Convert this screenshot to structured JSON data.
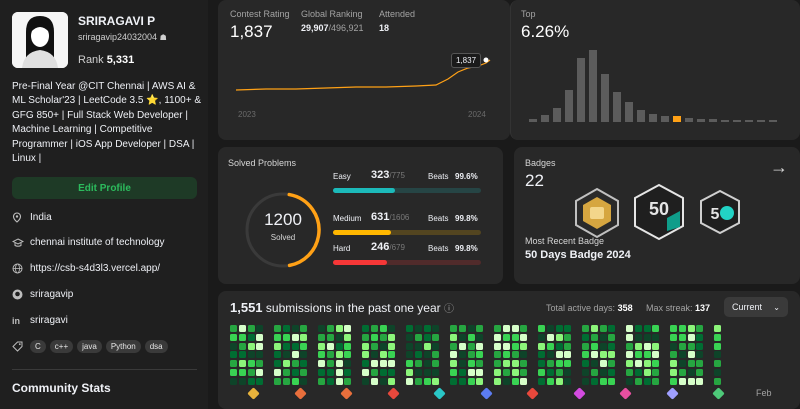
{
  "profile": {
    "name": "SRIRAGAVI P",
    "username": "sriragavip24032004",
    "rank_label": "Rank",
    "rank_value": "5,331",
    "bio": "Pre-Final Year @CIT Chennai | AWS AI & ML Scholar'23 | LeetCode 3.5 ⭐, 1100+ & GFG 850+ | Full Stack Web Developer | Machine Learning | Competitive Programmer | iOS App Developer | DSA | Linux |",
    "edit_label": "Edit Profile",
    "location": "India",
    "school": "chennai institute of technology",
    "website": "https://csb-s4d3l3.vercel.app/",
    "github": "sriragavip",
    "linkedin": "sriragavi",
    "skills": [
      "C",
      "c++",
      "java",
      "Python",
      "dsa"
    ],
    "community_title": "Community Stats"
  },
  "contest": {
    "rating_label": "Contest Rating",
    "rating_value": "1,837",
    "global_label": "Global Ranking",
    "global_value": "29,907",
    "global_total": "/496,921",
    "attended_label": "Attended",
    "attended_value": "18",
    "tooltip": "1,837",
    "year_start": "2023",
    "year_end": "2024"
  },
  "top": {
    "label": "Top",
    "value": "6.26%"
  },
  "solved": {
    "title": "Solved Problems",
    "total": "1200",
    "total_label": "Solved",
    "rows": [
      {
        "level": "Easy",
        "count": "323",
        "total": "/775",
        "beats_label": "Beats",
        "beats": "99.6%",
        "color": "#1cbaba",
        "fraction": 0.417
      },
      {
        "level": "Medium",
        "count": "631",
        "total": "/1606",
        "beats_label": "Beats",
        "beats": "99.8%",
        "color": "#ffb700",
        "fraction": 0.393
      },
      {
        "level": "Hard",
        "count": "246",
        "total": "/679",
        "beats_label": "Beats",
        "beats": "99.8%",
        "color": "#f63737",
        "fraction": 0.362
      }
    ]
  },
  "badges": {
    "title": "Badges",
    "count": "22",
    "recent_label": "Most Recent Badge",
    "recent_value": "50 Days Badge 2024"
  },
  "submissions": {
    "count": "1,551",
    "text": "submissions in the past one year",
    "active_label": "Total active days:",
    "active_value": "358",
    "streak_label": "Max streak:",
    "streak_value": "137",
    "period": "Current",
    "month_label": "Feb"
  }
}
